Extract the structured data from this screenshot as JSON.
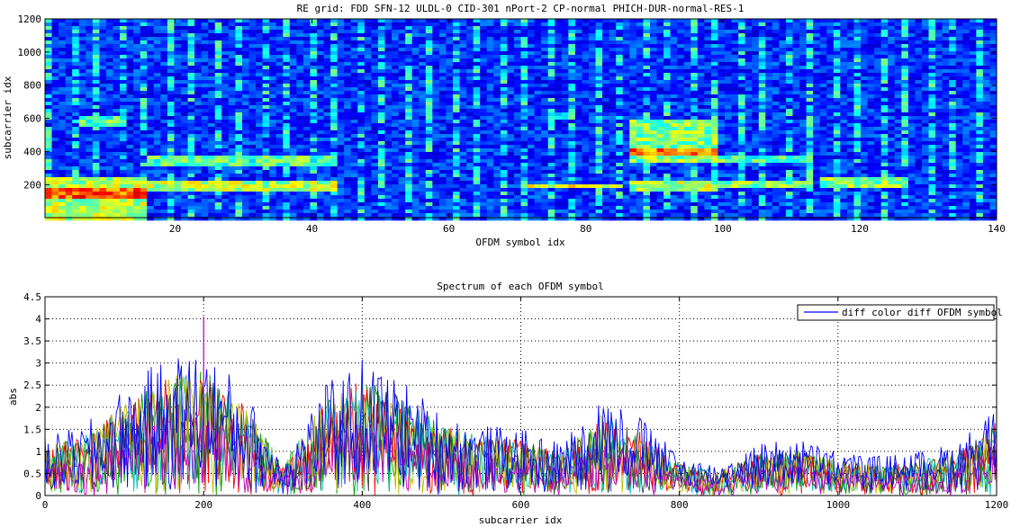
{
  "chart_data": [
    {
      "type": "heatmap",
      "title": "RE grid: FDD SFN-12 ULDL-0 CID-301 nPort-2 CP-normal PHICH-DUR-normal-RES-1",
      "xlabel": "OFDM symbol idx",
      "ylabel": "subcarrier idx",
      "xlim": [
        1,
        140
      ],
      "ylim": [
        1,
        1200
      ],
      "xticks": [
        20,
        40,
        60,
        80,
        100,
        120,
        140
      ],
      "yticks": [
        200,
        400,
        600,
        800,
        1000,
        1200
      ],
      "colormap": "jet",
      "regions": [
        {
          "x": [
            1,
            15
          ],
          "y": [
            0,
            250
          ],
          "level": 0.55
        },
        {
          "x": [
            1,
            15
          ],
          "y": [
            130,
            200
          ],
          "level": 0.8
        },
        {
          "x": [
            6,
            11
          ],
          "y": [
            570,
            630
          ],
          "level": 0.45
        },
        {
          "x": [
            16,
            43
          ],
          "y": [
            170,
            240
          ],
          "level": 0.55
        },
        {
          "x": [
            16,
            43
          ],
          "y": [
            330,
            380
          ],
          "level": 0.45
        },
        {
          "x": [
            76,
            78
          ],
          "y": [
            600,
            640
          ],
          "level": 0.4
        },
        {
          "x": [
            72,
            85
          ],
          "y": [
            195,
            205
          ],
          "level": 0.6
        },
        {
          "x": [
            87,
            99
          ],
          "y": [
            180,
            240
          ],
          "level": 0.55
        },
        {
          "x": [
            87,
            99
          ],
          "y": [
            350,
            600
          ],
          "level": 0.5
        },
        {
          "x": [
            87,
            99
          ],
          "y": [
            380,
            430
          ],
          "level": 0.75
        },
        {
          "x": [
            100,
            113
          ],
          "y": [
            190,
            240
          ],
          "level": 0.5
        },
        {
          "x": [
            100,
            113
          ],
          "y": [
            340,
            380
          ],
          "level": 0.45
        },
        {
          "x": [
            115,
            127
          ],
          "y": [
            190,
            260
          ],
          "level": 0.5
        }
      ]
    },
    {
      "type": "line",
      "title": "Spectrum of each OFDM symbol",
      "xlabel": "subcarrier idx",
      "ylabel": "abs",
      "xlim": [
        0,
        1200
      ],
      "ylim": [
        0,
        4.5
      ],
      "xticks": [
        0,
        200,
        400,
        600,
        800,
        1000,
        1200
      ],
      "yticks": [
        0,
        0.5,
        1,
        1.5,
        2,
        2.5,
        3,
        3.5,
        4,
        4.5
      ],
      "ytick_labels": [
        "0",
        "0.5",
        "1",
        "1.5",
        "2",
        "2.5",
        "3",
        "3.5",
        "4",
        "4.5"
      ],
      "grid": true,
      "legend": {
        "position": "top-right",
        "entries": [
          "diff color diff OFDM symbol"
        ]
      },
      "series_colors": [
        "#0000ff",
        "#00a000",
        "#ff0000",
        "#00bfbf",
        "#bf00bf",
        "#bfbf00",
        "#404040"
      ],
      "envelope": {
        "x": [
          0,
          50,
          100,
          150,
          200,
          250,
          300,
          350,
          400,
          450,
          500,
          550,
          600,
          650,
          700,
          750,
          800,
          850,
          900,
          950,
          1000,
          1050,
          1100,
          1150,
          1200
        ],
        "peak": [
          1.4,
          1.7,
          2.6,
          3.3,
          3.6,
          2.6,
          0.9,
          2.6,
          3.3,
          2.8,
          2.0,
          1.7,
          1.6,
          1.2,
          2.3,
          1.8,
          0.9,
          0.7,
          1.2,
          1.3,
          1.0,
          0.9,
          1.0,
          1.2,
          2.1
        ]
      }
    }
  ]
}
